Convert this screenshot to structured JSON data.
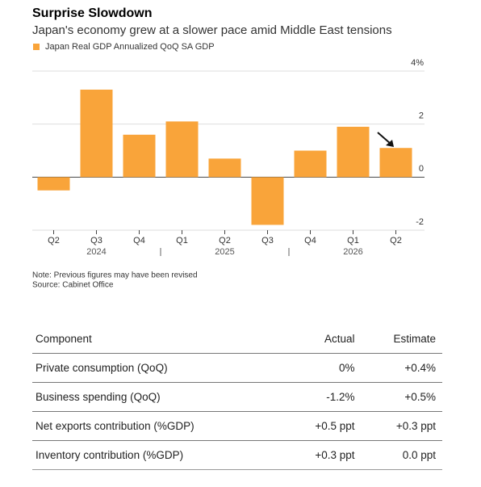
{
  "chart_data": {
    "type": "bar",
    "title": "Surprise Slowdown",
    "subtitle": "Japan's economy grew at a slower pace amid Middle East tensions",
    "series": [
      {
        "name": "Japan Real GDP Annualized QoQ SA GDP",
        "color": "#f9a43a",
        "values": [
          -0.5,
          3.3,
          1.6,
          2.1,
          0.7,
          -1.8,
          1.0,
          1.9,
          1.1
        ]
      }
    ],
    "categories": [
      "Q2",
      "Q3",
      "Q4",
      "Q1",
      "Q2",
      "Q3",
      "Q4",
      "Q1",
      "Q2"
    ],
    "years": [
      "2024",
      "2025",
      "2026"
    ],
    "ylim": [
      -2,
      4
    ],
    "yticks": [
      -2,
      0,
      2,
      {
        "value": 4,
        "label": "4%"
      }
    ],
    "grid": true,
    "notes": [
      "Note: Previous figures may have been revised",
      "Source: Cabinet Office"
    ]
  },
  "table": {
    "header": [
      "Component",
      "Actual",
      "Estimate"
    ],
    "rows": [
      [
        "Private consumption (QoQ)",
        "0%",
        "+0.4%"
      ],
      [
        "Business spending (QoQ)",
        "-1.2%",
        "+0.5%"
      ],
      [
        "Net exports contribution (%GDP)",
        "+0.5 ppt",
        "+0.3 ppt"
      ],
      [
        "Inventory contribution (%GDP)",
        "+0.3 ppt",
        "0.0 ppt"
      ]
    ]
  }
}
